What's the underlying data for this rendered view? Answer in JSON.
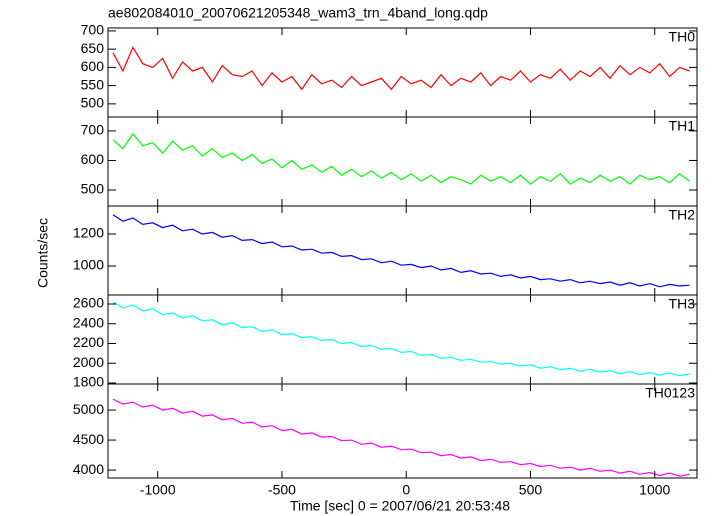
{
  "chart_data": {
    "type": "line",
    "title": "ae802084010_20070621205348_wam3_trn_4band_long.qdp",
    "ylabel": "Counts/sec",
    "xlabel": "Time [sec] 0 = 2007/06/21 20:53:48",
    "xlim": [
      -1200,
      1170
    ],
    "xticks": [
      -1000,
      -500,
      0,
      500,
      1000
    ],
    "x": [
      -1180,
      -1140,
      -1100,
      -1060,
      -1020,
      -980,
      -940,
      -900,
      -860,
      -820,
      -780,
      -740,
      -700,
      -660,
      -620,
      -580,
      -540,
      -500,
      -460,
      -420,
      -380,
      -340,
      -300,
      -260,
      -220,
      -180,
      -140,
      -100,
      -60,
      -20,
      20,
      60,
      100,
      140,
      180,
      220,
      260,
      300,
      340,
      380,
      420,
      460,
      500,
      540,
      580,
      620,
      660,
      700,
      740,
      780,
      820,
      860,
      900,
      940,
      980,
      1020,
      1060,
      1100,
      1140
    ],
    "panels": [
      {
        "name": "TH0",
        "color": "#ff0000",
        "ylim": [
          464,
          708
        ],
        "yticks": [
          500,
          550,
          600,
          650,
          700
        ],
        "values": [
          640,
          590,
          655,
          610,
          600,
          625,
          570,
          615,
          590,
          600,
          560,
          605,
          580,
          575,
          590,
          550,
          585,
          560,
          575,
          540,
          580,
          555,
          565,
          545,
          575,
          550,
          560,
          570,
          540,
          575,
          555,
          565,
          545,
          580,
          550,
          570,
          560,
          585,
          550,
          575,
          565,
          590,
          560,
          580,
          570,
          595,
          565,
          590,
          575,
          600,
          570,
          605,
          580,
          600,
          585,
          610,
          575,
          600,
          590
        ]
      },
      {
        "name": "TH1",
        "color": "#00ff00",
        "ylim": [
          446,
          747
        ],
        "yticks": [
          500,
          600,
          700
        ],
        "values": [
          670,
          640,
          690,
          650,
          660,
          625,
          665,
          635,
          650,
          615,
          640,
          610,
          625,
          600,
          620,
          590,
          605,
          575,
          600,
          570,
          585,
          560,
          580,
          550,
          570,
          545,
          565,
          540,
          560,
          535,
          555,
          530,
          550,
          525,
          545,
          535,
          520,
          550,
          530,
          545,
          525,
          550,
          520,
          545,
          530,
          555,
          520,
          540,
          525,
          550,
          530,
          545,
          520,
          550,
          535,
          545,
          525,
          555,
          530
        ]
      },
      {
        "name": "TH2",
        "color": "#0000ff",
        "ylim": [
          819,
          1375
        ],
        "yticks": [
          1000,
          1200
        ],
        "values": [
          1320,
          1280,
          1300,
          1260,
          1270,
          1240,
          1255,
          1220,
          1230,
          1200,
          1210,
          1180,
          1190,
          1160,
          1165,
          1140,
          1150,
          1120,
          1125,
          1100,
          1105,
          1080,
          1085,
          1060,
          1065,
          1040,
          1045,
          1020,
          1030,
          1005,
          1010,
          990,
          1000,
          975,
          985,
          960,
          970,
          950,
          955,
          935,
          945,
          925,
          935,
          915,
          920,
          905,
          915,
          895,
          905,
          890,
          900,
          880,
          895,
          875,
          890,
          870,
          885,
          875,
          880
        ]
      },
      {
        "name": "TH3",
        "color": "#00ffff",
        "ylim": [
          1790,
          2691
        ],
        "yticks": [
          1800,
          2000,
          2200,
          2400,
          2600
        ],
        "values": [
          2620,
          2560,
          2590,
          2530,
          2550,
          2490,
          2510,
          2460,
          2480,
          2430,
          2440,
          2390,
          2410,
          2360,
          2370,
          2320,
          2340,
          2290,
          2300,
          2260,
          2270,
          2230,
          2240,
          2200,
          2210,
          2170,
          2180,
          2140,
          2150,
          2110,
          2120,
          2080,
          2090,
          2050,
          2060,
          2030,
          2040,
          2010,
          2020,
          1990,
          2000,
          1970,
          1985,
          1950,
          1965,
          1935,
          1950,
          1920,
          1940,
          1910,
          1925,
          1895,
          1915,
          1885,
          1905,
          1880,
          1900,
          1875,
          1890
        ]
      },
      {
        "name": "TH0123",
        "color": "#ff00ff",
        "ylim": [
          3868,
          5434
        ],
        "yticks": [
          4000,
          4500,
          5000
        ],
        "values": [
          5180,
          5100,
          5130,
          5050,
          5080,
          5000,
          5030,
          4950,
          4980,
          4900,
          4920,
          4840,
          4860,
          4780,
          4800,
          4720,
          4740,
          4660,
          4680,
          4600,
          4620,
          4550,
          4560,
          4490,
          4500,
          4430,
          4450,
          4380,
          4400,
          4340,
          4350,
          4290,
          4300,
          4240,
          4260,
          4200,
          4220,
          4160,
          4180,
          4130,
          4140,
          4090,
          4110,
          4060,
          4080,
          4030,
          4050,
          4000,
          4030,
          3980,
          4000,
          3950,
          3980,
          3930,
          3960,
          3910,
          3950,
          3900,
          3930
        ]
      }
    ]
  }
}
